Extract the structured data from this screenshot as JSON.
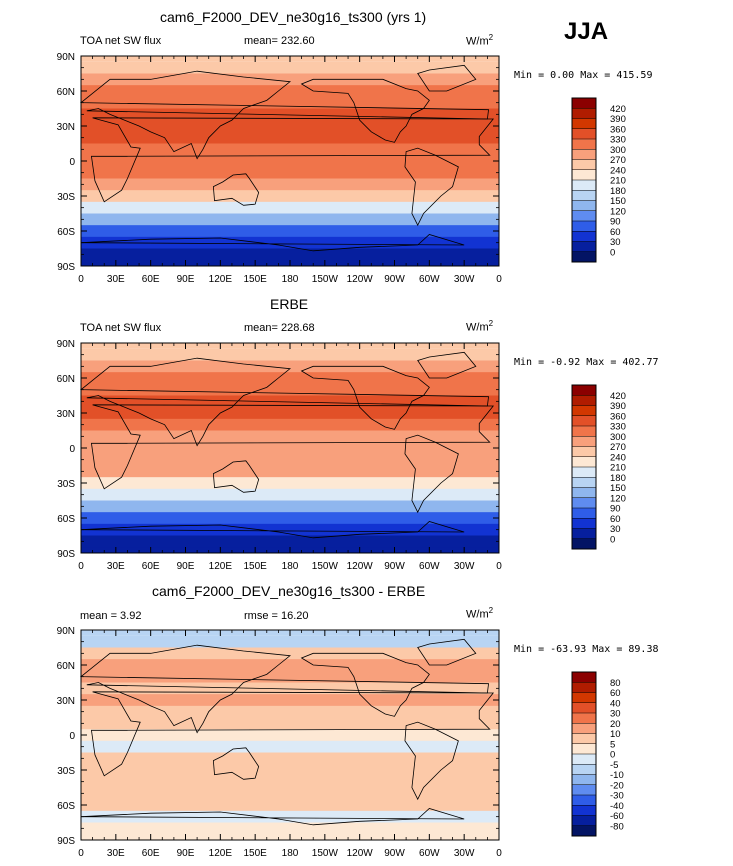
{
  "season": "JJA",
  "unit_base": "W/m",
  "unit_exp": "2",
  "lon_ticks": [
    "0",
    "30E",
    "60E",
    "90E",
    "120E",
    "150E",
    "180",
    "150W",
    "120W",
    "90W",
    "60W",
    "30W",
    "0"
  ],
  "lat_ticks": [
    "90N",
    "60N",
    "30N",
    "0",
    "30S",
    "60S",
    "90S"
  ],
  "panels": [
    {
      "title": "cam6_F2000_DEV_ne30g16_ts300 (yrs 1)",
      "left_label": "TOA net SW flux",
      "mid_label": "mean= 232.60",
      "minmax": "Min =   0.00 Max = 415.59",
      "colorbar_labels": [
        "420",
        "390",
        "360",
        "330",
        "300",
        "270",
        "240",
        "210",
        "180",
        "150",
        "120",
        "90",
        "60",
        "30",
        "0"
      ],
      "colorbar_colors": [
        "#8b0000",
        "#b01c00",
        "#d23700",
        "#e25028",
        "#f0744a",
        "#f8a07c",
        "#fcc9a8",
        "#fde8d4",
        "#dceaf7",
        "#b8d4f3",
        "#8fb6ee",
        "#5f8cf0",
        "#2f5de8",
        "#1233d2",
        "#061f9e",
        "#031464"
      ],
      "chart_data": {
        "type": "heatmap",
        "title": "cam6_F2000_DEV_ne30g16_ts300 (yrs 1)",
        "variable": "TOA net SW flux",
        "units": "W/m2",
        "mean": 232.6,
        "min": 0.0,
        "max": 415.59,
        "xlim": [
          0,
          360
        ],
        "ylim": [
          -90,
          90
        ],
        "levels": [
          0,
          30,
          60,
          90,
          120,
          150,
          180,
          210,
          240,
          270,
          300,
          330,
          360,
          390,
          420
        ],
        "lat": [
          80,
          70,
          60,
          50,
          40,
          30,
          20,
          10,
          0,
          -10,
          -20,
          -30,
          -40,
          -50,
          -60,
          -70,
          -80
        ],
        "zonal_values": [
          240,
          290,
          300,
          310,
          330,
          345,
          330,
          300,
          300,
          300,
          280,
          240,
          190,
          130,
          70,
          30,
          10
        ]
      }
    },
    {
      "title": "ERBE",
      "left_label": "TOA net SW flux",
      "mid_label": "mean= 228.68",
      "minmax": "Min =  -0.92 Max = 402.77",
      "colorbar_labels": [
        "420",
        "390",
        "360",
        "330",
        "300",
        "270",
        "240",
        "210",
        "180",
        "150",
        "120",
        "90",
        "60",
        "30",
        "0"
      ],
      "colorbar_colors": [
        "#8b0000",
        "#b01c00",
        "#d23700",
        "#e25028",
        "#f0744a",
        "#f8a07c",
        "#fcc9a8",
        "#fde8d4",
        "#dceaf7",
        "#b8d4f3",
        "#8fb6ee",
        "#5f8cf0",
        "#2f5de8",
        "#1233d2",
        "#061f9e",
        "#031464"
      ],
      "chart_data": {
        "type": "heatmap",
        "title": "ERBE",
        "variable": "TOA net SW flux",
        "units": "W/m2",
        "mean": 228.68,
        "min": -0.92,
        "max": 402.77,
        "xlim": [
          0,
          360
        ],
        "ylim": [
          -90,
          90
        ],
        "levels": [
          0,
          30,
          60,
          90,
          120,
          150,
          180,
          210,
          240,
          270,
          300,
          330,
          360,
          390,
          420
        ],
        "lat": [
          80,
          70,
          60,
          50,
          40,
          30,
          20,
          10,
          0,
          -10,
          -20,
          -30,
          -40,
          -50,
          -60,
          -70,
          -80
        ],
        "zonal_values": [
          250,
          290,
          300,
          310,
          330,
          340,
          320,
          290,
          290,
          290,
          270,
          230,
          180,
          120,
          70,
          30,
          10
        ]
      }
    },
    {
      "title": "cam6_F2000_DEV_ne30g16_ts300 - ERBE",
      "left_label": "mean =   3.92",
      "mid_label": "rmse =  16.20",
      "minmax": "Min = -63.93 Max =  89.38",
      "colorbar_labels": [
        "80",
        "60",
        "40",
        "30",
        "20",
        "10",
        "5",
        "0",
        "-5",
        "-10",
        "-20",
        "-30",
        "-40",
        "-60",
        "-80"
      ],
      "colorbar_colors": [
        "#8b0000",
        "#b01c00",
        "#d23700",
        "#e25028",
        "#f0744a",
        "#f8a07c",
        "#fcc9a8",
        "#fde8d4",
        "#dceaf7",
        "#b8d4f3",
        "#8fb6ee",
        "#5f8cf0",
        "#2f5de8",
        "#1233d2",
        "#061f9e",
        "#031464"
      ],
      "chart_data": {
        "type": "heatmap",
        "title": "cam6_F2000_DEV_ne30g16_ts300 - ERBE",
        "units": "W/m2",
        "mean": 3.92,
        "rmse": 16.2,
        "min": -63.93,
        "max": 89.38,
        "xlim": [
          0,
          360
        ],
        "ylim": [
          -90,
          90
        ],
        "levels": [
          -80,
          -60,
          -40,
          -30,
          -20,
          -10,
          -5,
          0,
          5,
          10,
          20,
          30,
          40,
          60,
          80
        ],
        "lat": [
          80,
          70,
          60,
          50,
          40,
          30,
          20,
          10,
          0,
          -10,
          -20,
          -30,
          -40,
          -50,
          -60,
          -70,
          -80
        ],
        "zonal_values": [
          -10,
          5,
          10,
          10,
          5,
          10,
          5,
          5,
          0,
          -5,
          5,
          5,
          5,
          5,
          5,
          -5,
          0
        ]
      }
    }
  ]
}
